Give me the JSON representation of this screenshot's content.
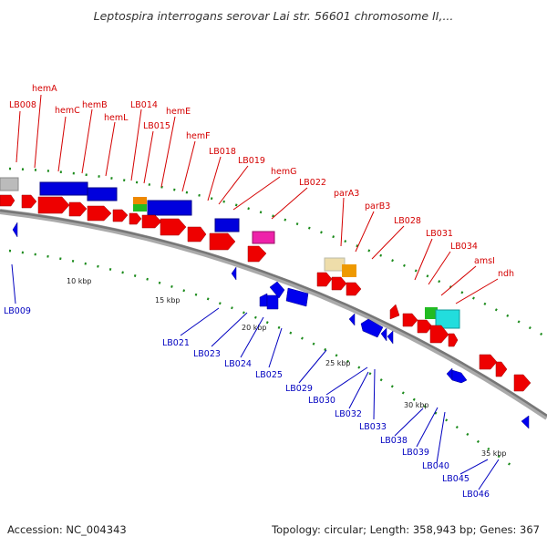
{
  "title": "Leptospira interrogans serovar Lai str. 56601 chromosome II,...",
  "footer": {
    "accession": "Accession: NC_004343",
    "summary": "Topology: circular; Length: 358,943 bp; Genes: 367"
  },
  "colors": {
    "forward_label": "#d40000",
    "reverse_label": "#0000c0",
    "backbone": "#888888",
    "gc_dots": "#1a8a1a",
    "forward_gene": "#ee0000",
    "reverse_gene": "#0000ee"
  },
  "forward_labels": [
    "LB008",
    "hemA",
    "hemC",
    "hemB",
    "hemL",
    "LB014",
    "LB015",
    "hemE",
    "hemF",
    "LB018",
    "LB019",
    "hemG",
    "LB022",
    "parA3",
    "parB3",
    "LB028",
    "LB031",
    "LB034",
    "amsI",
    "ndh"
  ],
  "reverse_labels": [
    "LB009",
    "LB021",
    "LB023",
    "LB024",
    "LB025",
    "LB029",
    "LB030",
    "LB032",
    "LB033",
    "LB038",
    "LB039",
    "LB040",
    "LB045",
    "LB046"
  ],
  "ticks": [
    "10 kbp",
    "15 kbp",
    "20 kbp",
    "25 kbp",
    "30 kbp",
    "35 kbp"
  ]
}
